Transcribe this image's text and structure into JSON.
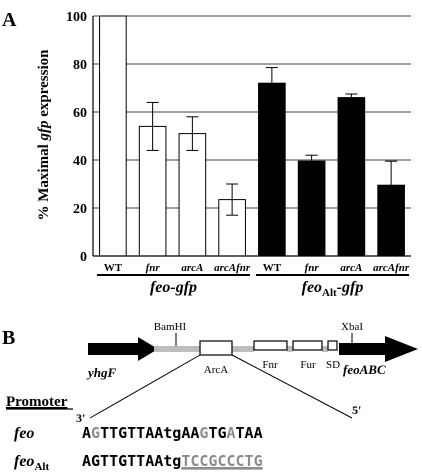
{
  "figure": {
    "panel_a_label": "A",
    "panel_b_label": "B"
  },
  "chart_data": {
    "type": "bar",
    "ylabel_prefix": "% Maximal ",
    "ylabel_italic": "gfp",
    "ylabel_suffix": " expression",
    "ylim": [
      0,
      100
    ],
    "yticks": [
      0,
      20,
      40,
      60,
      80,
      100
    ],
    "grid": true,
    "categories": [
      "WT",
      "fnr",
      "arcA",
      "arcAfnr",
      "WT",
      "fnr",
      "arcA",
      "arcAfnr"
    ],
    "categories_italic": [
      false,
      true,
      true,
      true,
      false,
      true,
      true,
      true
    ],
    "values": [
      100,
      54,
      51,
      23.5,
      72,
      39.5,
      66,
      29.5
    ],
    "errors": [
      0,
      10,
      7,
      6.5,
      6.5,
      2.5,
      1.5,
      10
    ],
    "colors": [
      "#ffffff",
      "#ffffff",
      "#ffffff",
      "#ffffff",
      "#000000",
      "#000000",
      "#000000",
      "#000000"
    ],
    "groups": [
      {
        "label_main": "feo-gfp",
        "label_sub": "",
        "label_tail": "",
        "start": 0,
        "end": 3
      },
      {
        "label_main": "feo",
        "label_sub": "Alt",
        "label_tail": "-gfp",
        "start": 4,
        "end": 7
      }
    ]
  },
  "diagram": {
    "yhgF": "yhgF",
    "BamHI": "BamHI",
    "ArcA": "ArcA",
    "Fnr": "Fnr",
    "Fur": "Fur",
    "SD": "SD",
    "XbaI": "XbaI",
    "feoABC": "feoABC",
    "end3": "3'",
    "end5": "5'",
    "promoter_header": "Promoter",
    "row1_label": "feo",
    "row2_label_main": "feo",
    "row2_label_sub": "Alt",
    "seq_feo": [
      {
        "t": "A",
        "c": "#000000"
      },
      {
        "t": "G",
        "c": "#8c8c8c"
      },
      {
        "t": "TTGTTAAtgAA",
        "c": "#000000"
      },
      {
        "t": "G",
        "c": "#8c8c8c"
      },
      {
        "t": "TG",
        "c": "#000000"
      },
      {
        "t": "A",
        "c": "#8c8c8c"
      },
      {
        "t": "TAA",
        "c": "#000000"
      }
    ],
    "seq_alt_black": "AGTTGTTAAtg",
    "seq_alt_grey": "TCCGCCCTG"
  }
}
